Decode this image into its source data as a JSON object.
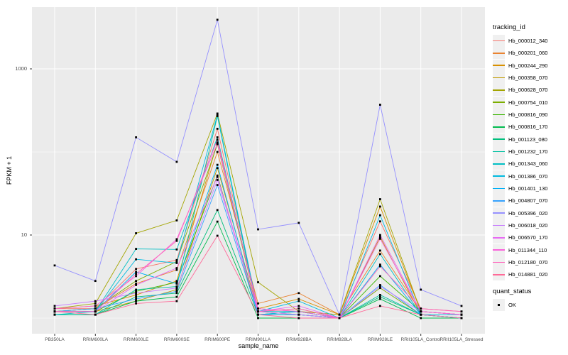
{
  "figure": {
    "y_axis": {
      "title": "FPKM + 1",
      "ticks": [
        {
          "label": "1000",
          "value": 1000
        },
        {
          "label": "10",
          "value": 10
        }
      ]
    },
    "x_axis": {
      "title": "sample_name"
    }
  },
  "legend": {
    "tracking": {
      "title": "tracking_id"
    },
    "quant": {
      "title": "quant_status",
      "items": [
        {
          "label": "OK",
          "marker": "filled-black-square"
        }
      ]
    }
  },
  "colors": {
    "panel_bg": "#EBEBEB",
    "gridline": "#FFFFFF",
    "axis_text": "#4D4D4D",
    "tick_mark": "#333333",
    "point_marker": "#000000",
    "legend_key_bg": "#F0F0F0"
  },
  "chart_data": {
    "type": "line",
    "title": "",
    "xlabel": "sample_name",
    "ylabel": "FPKM + 1",
    "y_scale": "log10",
    "ylim": [
      1,
      5600
    ],
    "y_ticks_labeled": [
      10,
      1000
    ],
    "y_gridlines_minor": [
      1,
      100
    ],
    "grid": true,
    "legend_position": "right",
    "point_marker": "black-square (quant_status OK)",
    "categories": [
      "PB350LA",
      "RRIM600LA",
      "RRIM600LE",
      "RRIM600SE",
      "RRIM600PE",
      "RRIM901LA",
      "RRIM928BA",
      "RRIM928LA",
      "RRIM928LE",
      "RRII105LA_Control",
      "RRII105LA_Stressed"
    ],
    "series": [
      {
        "name": "Hb_000012_340",
        "color": "#F8766D",
        "values": [
          1.3,
          1.3,
          3.9,
          5.0,
          190,
          1.3,
          1.2,
          1.1,
          14.6,
          1.3,
          1.2
        ]
      },
      {
        "name": "Hb_000201_060",
        "color": "#EA8331",
        "values": [
          1.2,
          1.3,
          2.6,
          3.8,
          100,
          1.5,
          2.0,
          1.1,
          6.5,
          1.2,
          1.1
        ]
      },
      {
        "name": "Hb_000244_290",
        "color": "#D89000",
        "values": [
          1.3,
          1.4,
          1.9,
          2.8,
          130,
          1.3,
          1.7,
          1.1,
          22,
          1.2,
          1.1
        ]
      },
      {
        "name": "Hb_000358_070",
        "color": "#C09B00",
        "values": [
          1.2,
          1.2,
          1.6,
          2.2,
          64,
          1.2,
          1.3,
          1.0,
          9.5,
          1.1,
          1.0
        ]
      },
      {
        "name": "Hb_000628_070",
        "color": "#A3A500",
        "values": [
          1.3,
          1.5,
          10.5,
          15,
          290,
          2.7,
          1.2,
          1.1,
          27,
          1.2,
          1.1
        ]
      },
      {
        "name": "Hb_000754_010",
        "color": "#7CAE00",
        "values": [
          1.2,
          1.3,
          2.8,
          4.8,
          124,
          1.2,
          1.1,
          1.0,
          2.3,
          1.1,
          1.0
        ]
      },
      {
        "name": "Hb_000816_090",
        "color": "#39B600",
        "values": [
          1.2,
          1.2,
          2.1,
          2.7,
          52,
          1.1,
          1.2,
          1.0,
          3.2,
          1.2,
          1.1
        ]
      },
      {
        "name": "Hb_000816_170",
        "color": "#00BB4E",
        "values": [
          1.1,
          1.1,
          1.6,
          1.8,
          14.5,
          1.0,
          1.0,
          1.0,
          1.7,
          1.0,
          1.0
        ]
      },
      {
        "name": "Hb_001123_080",
        "color": "#00BF7D",
        "values": [
          1.1,
          1.1,
          1.8,
          2.0,
          20,
          1.1,
          1.1,
          1.0,
          1.8,
          1.1,
          1.0
        ]
      },
      {
        "name": "Hb_001232_170",
        "color": "#00C1A3",
        "values": [
          1.1,
          1.1,
          2.2,
          2.4,
          270,
          1.1,
          1.1,
          1.0,
          1.9,
          1.1,
          1.0
        ]
      },
      {
        "name": "Hb_001343_060",
        "color": "#00BFC4",
        "values": [
          1.1,
          1.2,
          6.8,
          6.7,
          150,
          1.2,
          1.2,
          1.0,
          5.9,
          1.1,
          1.0
        ]
      },
      {
        "name": "Hb_001386_070",
        "color": "#00BAE0",
        "values": [
          1.2,
          1.2,
          5.1,
          4.6,
          280,
          1.2,
          1.6,
          1.0,
          17.3,
          1.1,
          1.1
        ]
      },
      {
        "name": "Hb_001401_130",
        "color": "#00B0F6",
        "values": [
          1.2,
          1.2,
          3.6,
          2.6,
          70,
          1.1,
          1.2,
          1.0,
          4.4,
          1.1,
          1.0
        ]
      },
      {
        "name": "Hb_004807_070",
        "color": "#35A2FF",
        "values": [
          1.2,
          1.3,
          1.7,
          2.1,
          40,
          1.1,
          1.1,
          1.0,
          2.5,
          1.1,
          1.0
        ]
      },
      {
        "name": "Hb_005396_020",
        "color": "#9590FF",
        "values": [
          4.3,
          2.8,
          150,
          76,
          3900,
          11.7,
          14,
          1.1,
          370,
          2.2,
          1.4
        ]
      },
      {
        "name": "Hb_006018_020",
        "color": "#C77CFF",
        "values": [
          1.4,
          1.6,
          2.0,
          2.3,
          46,
          1.2,
          1.1,
          1.0,
          2.4,
          1.2,
          1.1
        ]
      },
      {
        "name": "Hb_006570_170",
        "color": "#E76BF3",
        "values": [
          1.2,
          1.2,
          2.5,
          4.0,
          50,
          1.2,
          1.4,
          1.0,
          10,
          1.2,
          1.1
        ]
      },
      {
        "name": "Hb_011344_110",
        "color": "#FA62DB",
        "values": [
          1.3,
          1.4,
          3.2,
          8.9,
          126,
          1.3,
          1.2,
          1.0,
          9.0,
          1.2,
          1.1
        ]
      },
      {
        "name": "Hb_012180_070",
        "color": "#FF62BC",
        "values": [
          1.2,
          1.2,
          3.4,
          8.5,
          140,
          1.2,
          1.3,
          1.0,
          4.2,
          1.3,
          1.2
        ]
      },
      {
        "name": "Hb_014881_020",
        "color": "#FF6A98",
        "values": [
          1.2,
          1.1,
          1.5,
          1.6,
          9.8,
          1.1,
          1.0,
          1.0,
          1.4,
          1.1,
          1.0
        ]
      }
    ]
  }
}
